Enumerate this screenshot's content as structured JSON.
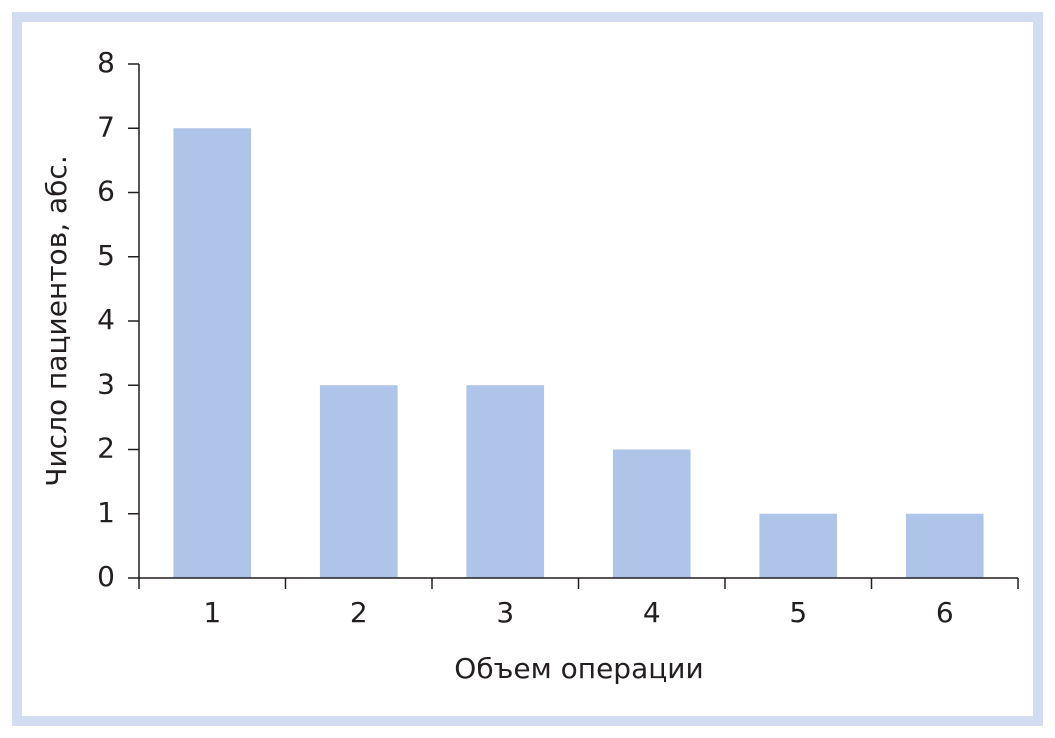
{
  "chart_data": {
    "type": "bar",
    "x_label": "Объем операции",
    "y_label": "Число пациентов, абс.",
    "categories": [
      "1",
      "2",
      "3",
      "4",
      "5",
      "6"
    ],
    "values": [
      7,
      3,
      3,
      2,
      1,
      1
    ],
    "color": "#aec4e8",
    "ylim": [
      0,
      8
    ],
    "yticks": [
      0,
      1,
      2,
      3,
      4,
      5,
      6,
      7,
      8
    ],
    "grid": false
  }
}
